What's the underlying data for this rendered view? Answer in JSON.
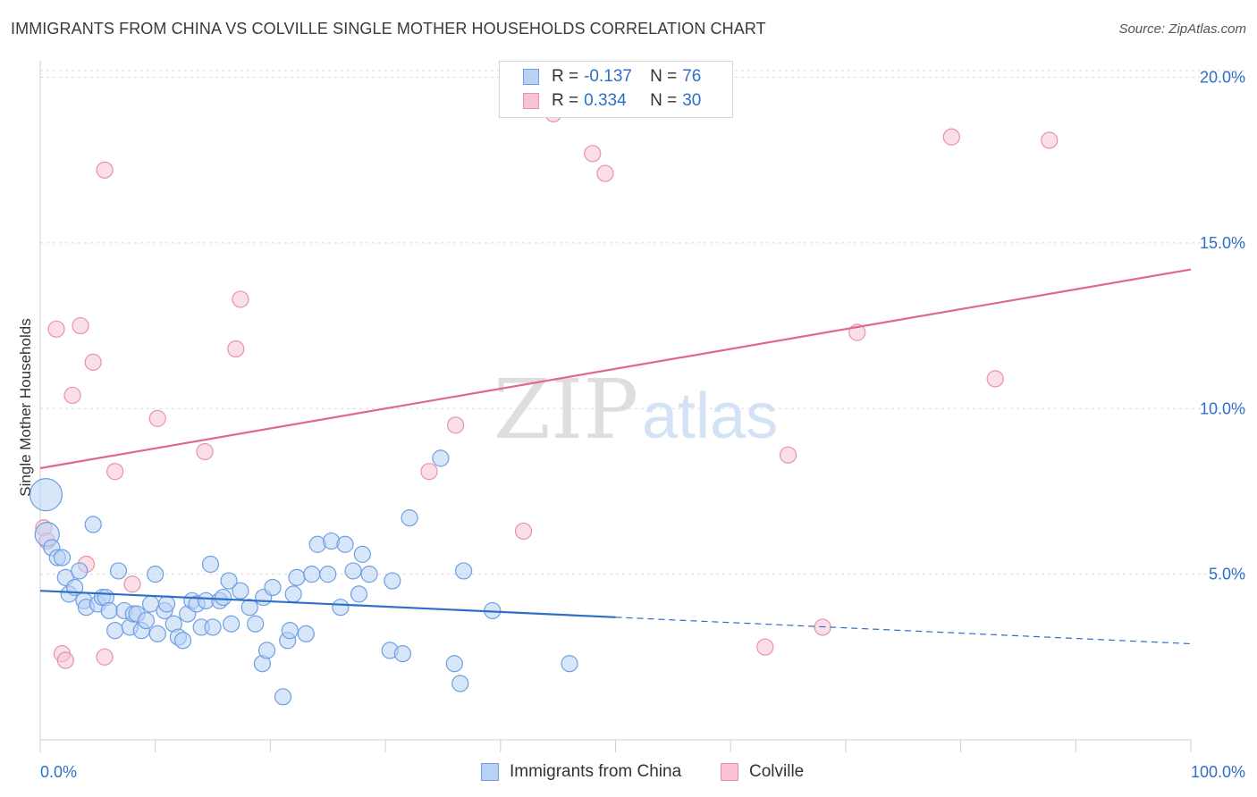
{
  "title": "IMMIGRANTS FROM CHINA VS COLVILLE SINGLE MOTHER HOUSEHOLDS CORRELATION CHART",
  "source": "Source: ZipAtlas.com",
  "colors": {
    "blue_fill": "#b8d2f5",
    "blue_stroke": "#6f9fe0",
    "blue_line": "#2f6fc7",
    "pink_fill": "#f8c4d4",
    "pink_stroke": "#e891ae",
    "pink_line": "#e06890",
    "tick_label": "#2f6fc7",
    "grid": "#d9d9d9"
  },
  "legend": {
    "rows": [
      {
        "r_label": "R =",
        "r_value": "-0.137",
        "n_label": "N =",
        "n_value": "76",
        "series": "blue"
      },
      {
        "r_label": "R =",
        "r_value": "0.334",
        "n_label": "N =",
        "n_value": "30",
        "series": "pink"
      }
    ]
  },
  "bottom_legend": {
    "blue_label": "Immigrants from China",
    "pink_label": "Colville"
  },
  "watermark": {
    "zip": "ZIP",
    "atlas": "atlas"
  },
  "chart_data": {
    "type": "scatter",
    "title": "IMMIGRANTS FROM CHINA VS COLVILLE SINGLE MOTHER HOUSEHOLDS CORRELATION CHART",
    "xlabel": "",
    "ylabel": "Single Mother Households",
    "xlim": [
      0,
      100
    ],
    "ylim": [
      0,
      20.5
    ],
    "x_tick_labels": [
      {
        "value": 0,
        "label": "0.0%"
      },
      {
        "value": 100,
        "label": "100.0%"
      }
    ],
    "y_tick_labels": [
      {
        "value": 5,
        "label": "5.0%"
      },
      {
        "value": 10,
        "label": "10.0%"
      },
      {
        "value": 15,
        "label": "15.0%"
      },
      {
        "value": 20,
        "label": "20.0%"
      }
    ],
    "series": [
      {
        "name": "Immigrants from China",
        "color": "blue",
        "regression": {
          "x0": 0,
          "y0": 4.5,
          "x1": 100,
          "y1": 2.9,
          "solid_until": 50
        },
        "points": [
          {
            "x": 0.5,
            "y": 7.4,
            "s": 2
          },
          {
            "x": 0.6,
            "y": 6.2,
            "s": 1.5
          },
          {
            "x": 1.0,
            "y": 5.8,
            "s": 1
          },
          {
            "x": 1.5,
            "y": 5.5,
            "s": 1
          },
          {
            "x": 1.9,
            "y": 5.5,
            "s": 1
          },
          {
            "x": 2.2,
            "y": 4.9,
            "s": 1
          },
          {
            "x": 2.5,
            "y": 4.4,
            "s": 1
          },
          {
            "x": 3.0,
            "y": 4.6,
            "s": 1
          },
          {
            "x": 3.4,
            "y": 5.1,
            "s": 1
          },
          {
            "x": 3.8,
            "y": 4.2,
            "s": 1
          },
          {
            "x": 4.0,
            "y": 4.0,
            "s": 1
          },
          {
            "x": 4.6,
            "y": 6.5,
            "s": 1
          },
          {
            "x": 5.0,
            "y": 4.1,
            "s": 1
          },
          {
            "x": 5.4,
            "y": 4.3,
            "s": 1
          },
          {
            "x": 5.7,
            "y": 4.3,
            "s": 1
          },
          {
            "x": 6.0,
            "y": 3.9,
            "s": 1
          },
          {
            "x": 6.5,
            "y": 3.3,
            "s": 1
          },
          {
            "x": 6.8,
            "y": 5.1,
            "s": 1
          },
          {
            "x": 7.3,
            "y": 3.9,
            "s": 1
          },
          {
            "x": 7.8,
            "y": 3.4,
            "s": 1
          },
          {
            "x": 8.1,
            "y": 3.8,
            "s": 1
          },
          {
            "x": 8.4,
            "y": 3.8,
            "s": 1
          },
          {
            "x": 8.8,
            "y": 3.3,
            "s": 1
          },
          {
            "x": 9.2,
            "y": 3.6,
            "s": 1
          },
          {
            "x": 9.6,
            "y": 4.1,
            "s": 1
          },
          {
            "x": 10.0,
            "y": 5.0,
            "s": 1
          },
          {
            "x": 10.2,
            "y": 3.2,
            "s": 1
          },
          {
            "x": 10.8,
            "y": 3.9,
            "s": 1
          },
          {
            "x": 11.0,
            "y": 4.1,
            "s": 1
          },
          {
            "x": 11.6,
            "y": 3.5,
            "s": 1
          },
          {
            "x": 12.0,
            "y": 3.1,
            "s": 1
          },
          {
            "x": 12.4,
            "y": 3.0,
            "s": 1
          },
          {
            "x": 12.8,
            "y": 3.8,
            "s": 1
          },
          {
            "x": 13.2,
            "y": 4.2,
            "s": 1
          },
          {
            "x": 13.6,
            "y": 4.1,
            "s": 1
          },
          {
            "x": 14.0,
            "y": 3.4,
            "s": 1
          },
          {
            "x": 14.4,
            "y": 4.2,
            "s": 1
          },
          {
            "x": 14.8,
            "y": 5.3,
            "s": 1
          },
          {
            "x": 15.0,
            "y": 3.4,
            "s": 1
          },
          {
            "x": 15.6,
            "y": 4.2,
            "s": 1
          },
          {
            "x": 15.9,
            "y": 4.3,
            "s": 1
          },
          {
            "x": 16.4,
            "y": 4.8,
            "s": 1
          },
          {
            "x": 16.6,
            "y": 3.5,
            "s": 1
          },
          {
            "x": 17.4,
            "y": 4.5,
            "s": 1
          },
          {
            "x": 18.2,
            "y": 4.0,
            "s": 1
          },
          {
            "x": 18.7,
            "y": 3.5,
            "s": 1
          },
          {
            "x": 19.3,
            "y": 2.3,
            "s": 1
          },
          {
            "x": 19.4,
            "y": 4.3,
            "s": 1
          },
          {
            "x": 19.7,
            "y": 2.7,
            "s": 1
          },
          {
            "x": 20.2,
            "y": 4.6,
            "s": 1
          },
          {
            "x": 21.1,
            "y": 1.3,
            "s": 1
          },
          {
            "x": 21.5,
            "y": 3.0,
            "s": 1
          },
          {
            "x": 21.7,
            "y": 3.3,
            "s": 1
          },
          {
            "x": 22.0,
            "y": 4.4,
            "s": 1
          },
          {
            "x": 22.3,
            "y": 4.9,
            "s": 1
          },
          {
            "x": 23.1,
            "y": 3.2,
            "s": 1
          },
          {
            "x": 23.6,
            "y": 5.0,
            "s": 1
          },
          {
            "x": 24.1,
            "y": 5.9,
            "s": 1
          },
          {
            "x": 25.3,
            "y": 6.0,
            "s": 1
          },
          {
            "x": 26.1,
            "y": 4.0,
            "s": 1
          },
          {
            "x": 26.5,
            "y": 5.9,
            "s": 1
          },
          {
            "x": 27.2,
            "y": 5.1,
            "s": 1
          },
          {
            "x": 27.7,
            "y": 4.4,
            "s": 1
          },
          {
            "x": 28.0,
            "y": 5.6,
            "s": 1
          },
          {
            "x": 28.6,
            "y": 5.0,
            "s": 1
          },
          {
            "x": 30.4,
            "y": 2.7,
            "s": 1
          },
          {
            "x": 30.6,
            "y": 4.8,
            "s": 1
          },
          {
            "x": 31.5,
            "y": 2.6,
            "s": 1
          },
          {
            "x": 32.1,
            "y": 6.7,
            "s": 1
          },
          {
            "x": 34.8,
            "y": 8.5,
            "s": 1
          },
          {
            "x": 36.0,
            "y": 2.3,
            "s": 1
          },
          {
            "x": 36.5,
            "y": 1.7,
            "s": 1
          },
          {
            "x": 36.8,
            "y": 5.1,
            "s": 1
          },
          {
            "x": 39.3,
            "y": 3.9,
            "s": 1
          },
          {
            "x": 46.0,
            "y": 2.3,
            "s": 1
          },
          {
            "x": 25.0,
            "y": 5.0,
            "s": 1
          }
        ]
      },
      {
        "name": "Colville",
        "color": "pink",
        "regression": {
          "x0": 0,
          "y0": 8.2,
          "x1": 100,
          "y1": 14.2,
          "solid_until": 100
        },
        "points": [
          {
            "x": 0.3,
            "y": 6.4,
            "s": 1
          },
          {
            "x": 0.6,
            "y": 6.0,
            "s": 1
          },
          {
            "x": 1.4,
            "y": 12.4,
            "s": 1
          },
          {
            "x": 1.9,
            "y": 2.6,
            "s": 1
          },
          {
            "x": 2.2,
            "y": 2.4,
            "s": 1
          },
          {
            "x": 2.8,
            "y": 10.4,
            "s": 1
          },
          {
            "x": 3.5,
            "y": 12.5,
            "s": 1
          },
          {
            "x": 4.0,
            "y": 5.3,
            "s": 1
          },
          {
            "x": 4.6,
            "y": 11.4,
            "s": 1
          },
          {
            "x": 5.6,
            "y": 17.2,
            "s": 1
          },
          {
            "x": 5.6,
            "y": 2.5,
            "s": 1
          },
          {
            "x": 6.5,
            "y": 8.1,
            "s": 1
          },
          {
            "x": 8.0,
            "y": 4.7,
            "s": 1
          },
          {
            "x": 10.2,
            "y": 9.7,
            "s": 1
          },
          {
            "x": 14.3,
            "y": 8.7,
            "s": 1
          },
          {
            "x": 17.0,
            "y": 11.8,
            "s": 1
          },
          {
            "x": 17.4,
            "y": 13.3,
            "s": 1
          },
          {
            "x": 33.8,
            "y": 8.1,
            "s": 1
          },
          {
            "x": 36.1,
            "y": 9.5,
            "s": 1
          },
          {
            "x": 42.0,
            "y": 6.3,
            "s": 1
          },
          {
            "x": 44.6,
            "y": 18.9,
            "s": 1
          },
          {
            "x": 48.0,
            "y": 17.7,
            "s": 1
          },
          {
            "x": 49.1,
            "y": 17.1,
            "s": 1
          },
          {
            "x": 63.0,
            "y": 2.8,
            "s": 1
          },
          {
            "x": 65.0,
            "y": 8.6,
            "s": 1
          },
          {
            "x": 68.0,
            "y": 3.4,
            "s": 1
          },
          {
            "x": 71.0,
            "y": 12.3,
            "s": 1
          },
          {
            "x": 79.2,
            "y": 18.2,
            "s": 1
          },
          {
            "x": 83.0,
            "y": 10.9,
            "s": 1
          },
          {
            "x": 87.7,
            "y": 18.1,
            "s": 1
          }
        ]
      }
    ]
  }
}
